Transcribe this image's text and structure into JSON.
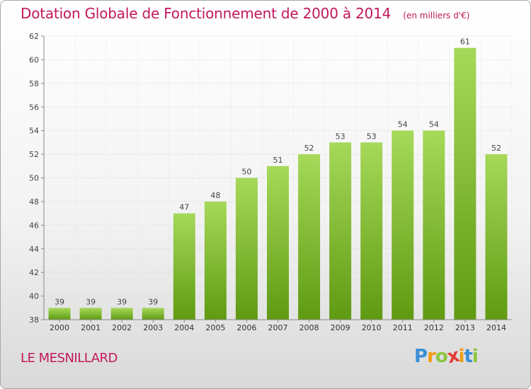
{
  "title": "Dotation Globale de Fonctionnement de 2000 à 2014",
  "unit_note": "(en milliers d'€)",
  "commune": "LE MESNILLARD",
  "logo": {
    "letters": [
      "P",
      "r",
      "o",
      "x",
      "i",
      "t",
      "i"
    ],
    "colors": [
      "#3a8fd6",
      "#f39c12",
      "#8cc63f",
      "#e53935",
      "#f39c12",
      "#3a8fd6",
      "#8cc63f"
    ]
  },
  "colors": {
    "title": "#c2185b",
    "bar_light": "#a6d95a",
    "bar_dark": "#5f9a12"
  },
  "chart_data": {
    "type": "bar",
    "categories": [
      "2000",
      "2001",
      "2002",
      "2003",
      "2004",
      "2005",
      "2006",
      "2007",
      "2008",
      "2009",
      "2010",
      "2011",
      "2012",
      "2013",
      "2014"
    ],
    "values": [
      39,
      39,
      39,
      39,
      47,
      48,
      50,
      51,
      52,
      53,
      53,
      54,
      54,
      61,
      52
    ],
    "ylim": [
      38,
      62
    ],
    "yticks": [
      38,
      40,
      42,
      44,
      46,
      48,
      50,
      52,
      54,
      56,
      58,
      60,
      62
    ],
    "grid": true
  }
}
